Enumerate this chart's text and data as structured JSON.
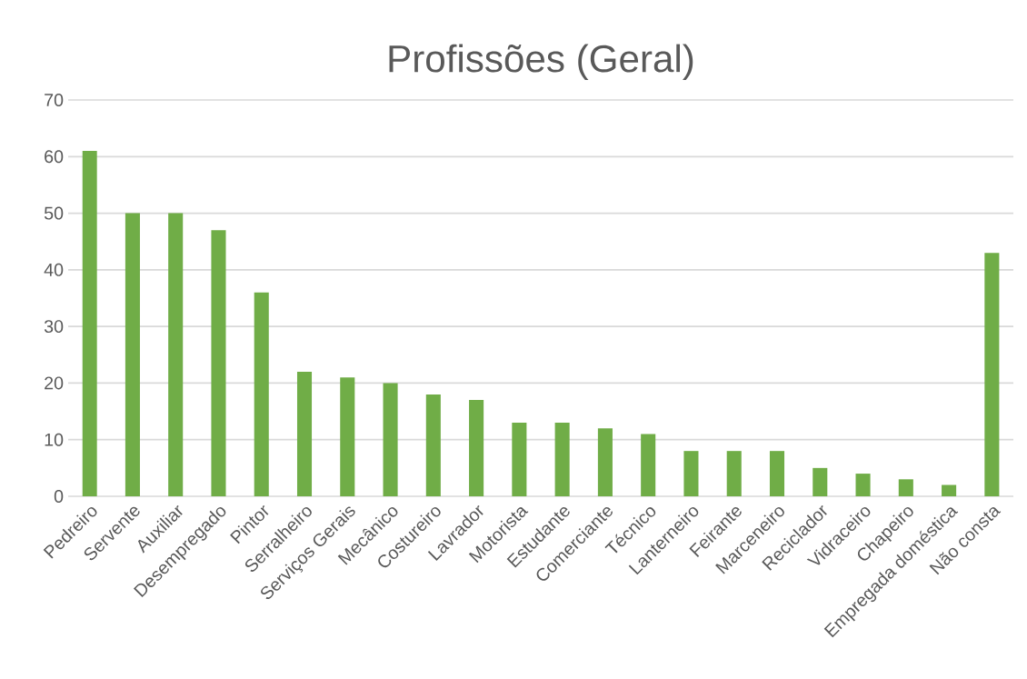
{
  "chart_data": {
    "type": "bar",
    "title": "Profissões (Geral)",
    "categories": [
      "Pedreiro",
      "Servente",
      "Auxiliar",
      "Desempregado",
      "Pintor",
      "Serralheiro",
      "Serviços Gerais",
      "Mecânico",
      "Costureiro",
      "Lavrador",
      "Motorista",
      "Estudante",
      "Comerciante",
      "Técnico",
      "Lanterneiro",
      "Feirante",
      "Marceneiro",
      "Reciclador",
      "Vidraceiro",
      "Chapeiro",
      "Empregada doméstica",
      "Não consta"
    ],
    "values": [
      61,
      50,
      50,
      47,
      36,
      22,
      21,
      20,
      18,
      17,
      13,
      13,
      12,
      11,
      8,
      8,
      8,
      5,
      4,
      3,
      2,
      43
    ],
    "color": "#70ad47",
    "ylim": [
      0,
      70
    ],
    "yticks": [
      0,
      10,
      20,
      30,
      40,
      50,
      60,
      70
    ],
    "grid": "y"
  }
}
